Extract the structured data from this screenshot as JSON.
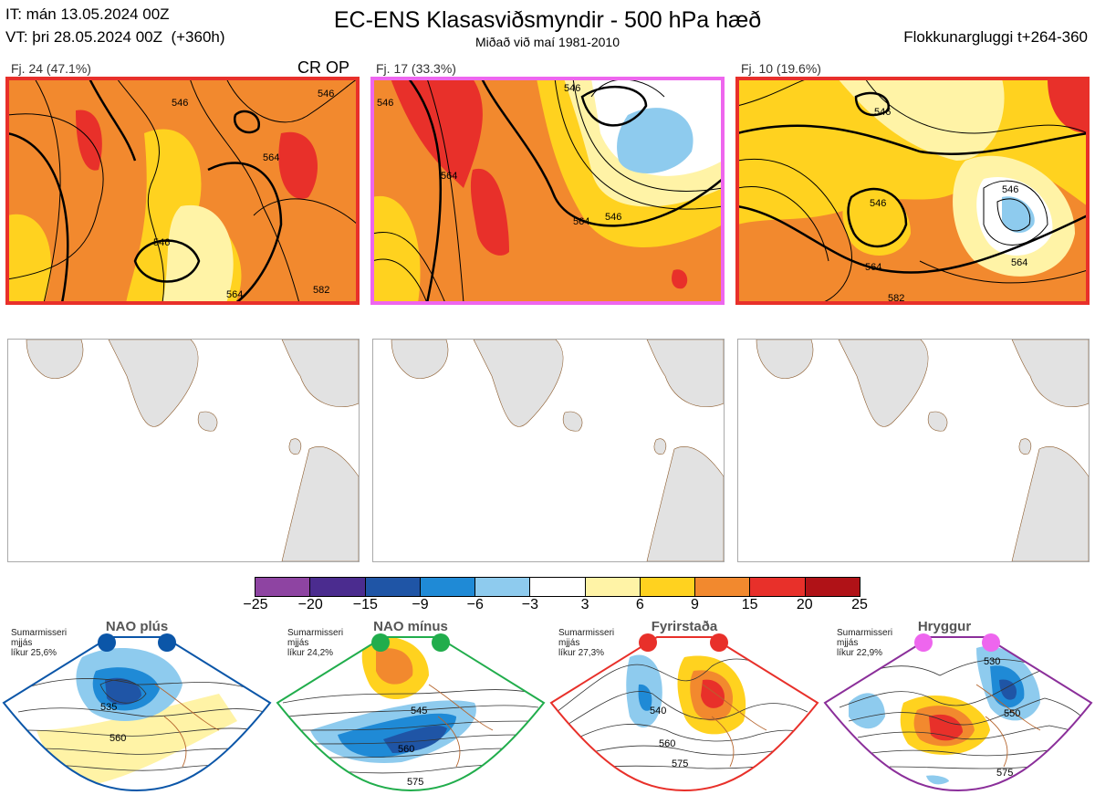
{
  "header": {
    "init_time": "IT: mán 13.05.2024 00Z",
    "valid_time": "VT: þri 28.05.2024 00Z  (+360h)",
    "title": "EC-ENS Klasasviðsmyndir - 500 hPa hæð",
    "subtitle": "Miðað við maí 1981-2010",
    "window": "Flokkunargluggi t+264-360"
  },
  "clusters": [
    {
      "label": "Fj. 24 (47.1%)",
      "tag": "CR OP",
      "border_color": "#e8302a",
      "contours": [
        "546",
        "564",
        "546",
        "564",
        "582",
        "546"
      ]
    },
    {
      "label": "Fj. 17 (33.3%)",
      "tag": "",
      "border_color": "#ee66ee",
      "contours": [
        "546",
        "564",
        "546",
        "564",
        "546"
      ]
    },
    {
      "label": "Fj. 10 (19.6%)",
      "tag": "",
      "border_color": "#e8302a",
      "contours": [
        "546",
        "546",
        "564",
        "564",
        "546",
        "582"
      ]
    }
  ],
  "colorbar": {
    "ticks": [
      "−25",
      "−20",
      "−15",
      "−9",
      "−6",
      "−3",
      "3",
      "6",
      "9",
      "15",
      "20",
      "25"
    ],
    "colors": [
      "#8e44a2",
      "#4b2c8f",
      "#1f55a6",
      "#1f8ad6",
      "#8ecbee",
      "#ffffff",
      "#fff3a6",
      "#ffd21f",
      "#f2892e",
      "#e8302a",
      "#b01217"
    ]
  },
  "regimes": [
    {
      "name": "NAO plús",
      "note": "Sumarmisseri\nmjjás\nlíkur 25,6%",
      "dot_color": "#0b56a8",
      "frame_color": "#0b56a8",
      "labels": [
        "535",
        "560"
      ]
    },
    {
      "name": "NAO mínus",
      "note": "Sumarmisseri\nmjjás\nlíkur 24,2%",
      "dot_color": "#21ad4c",
      "frame_color": "#21ad4c",
      "labels": [
        "545",
        "560",
        "575"
      ]
    },
    {
      "name": "Fyrirstaða",
      "note": "Sumarmisseri\nmjjás\nlíkur 27,3%",
      "dot_color": "#e8302a",
      "frame_color": "#e8302a",
      "labels": [
        "540",
        "560",
        "575"
      ]
    },
    {
      "name": "Hryggur",
      "note": "Sumarmisseri\nmjjás\nlíkur 22,9%",
      "dot_color": "#ee66ee",
      "frame_color": "#8b2f9a",
      "labels": [
        "530",
        "550",
        "575"
      ]
    }
  ]
}
